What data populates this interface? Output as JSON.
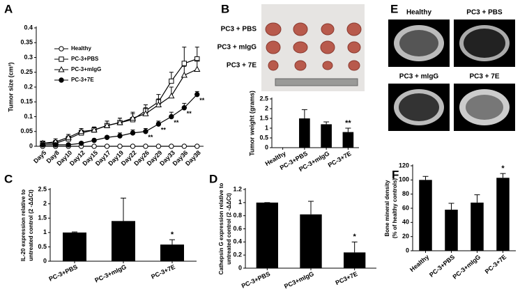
{
  "panel_letters": [
    "A",
    "B",
    "C",
    "D",
    "E",
    "F"
  ],
  "photo_labels": [
    "PC3 + PBS",
    "PC3 + mIgG",
    "PC3 + 7E"
  ],
  "ct_labels": [
    "Healthy",
    "PC3 + PBS",
    "PC3 + mIgG",
    "PC3 + 7E"
  ],
  "chart_data": [
    {
      "type": "line",
      "panel": "A",
      "ylabel": [
        "Tumor size (cm³)"
      ],
      "categories": [
        "Day5",
        "Day8",
        "Day10",
        "Day12",
        "Day15",
        "Day17",
        "Day19",
        "Day22",
        "Day26",
        "Day29",
        "Day33",
        "Day36",
        "Day38"
      ],
      "ylim": [
        0,
        0.4
      ],
      "yticks": [
        0,
        0.05,
        0.1,
        0.15,
        0.2,
        0.25,
        0.3,
        0.35,
        0.4
      ],
      "series": [
        {
          "name": "Healthy",
          "color": "#000000",
          "marker": "circle-open",
          "values": [
            0,
            0,
            0,
            0,
            0,
            0,
            0,
            0,
            0,
            0,
            0,
            0,
            0
          ]
        },
        {
          "name": "PC-3+PBS",
          "color": "#000000",
          "marker": "square-open",
          "values": [
            0.01,
            0.01,
            0.025,
            0.045,
            0.055,
            0.07,
            0.08,
            0.09,
            0.12,
            0.15,
            0.22,
            0.28,
            0.295
          ],
          "errors": [
            0.005,
            0.01,
            0.01,
            0.01,
            0.01,
            0.015,
            0.015,
            0.02,
            0.02,
            0.025,
            0.03,
            0.055,
            0.04
          ]
        },
        {
          "name": "PC-3+mIgG",
          "color": "#000000",
          "marker": "triangle-open",
          "values": [
            0.01,
            0.015,
            0.03,
            0.05,
            0.055,
            0.07,
            0.08,
            0.095,
            0.11,
            0.14,
            0.17,
            0.24,
            0.26
          ],
          "errors": [
            0.005,
            0.01,
            0.01,
            0.01,
            0.01,
            0.015,
            0.015,
            0.02,
            0.02,
            0.02,
            0.03,
            0.03,
            0.03
          ]
        },
        {
          "name": "PC-3+7E",
          "color": "#000000",
          "marker": "circle",
          "values": [
            0.005,
            0.005,
            0.005,
            0.01,
            0.02,
            0.03,
            0.035,
            0.045,
            0.05,
            0.075,
            0.1,
            0.13,
            0.175
          ],
          "errors": [
            0.005,
            0.005,
            0.005,
            0.005,
            0.005,
            0.005,
            0.01,
            0.01,
            0.01,
            0.01,
            0.015,
            0.015,
            0.01
          ],
          "significance": [
            null,
            null,
            null,
            null,
            null,
            null,
            null,
            null,
            "**",
            "**",
            "**",
            "**",
            "**"
          ]
        }
      ]
    },
    {
      "type": "bar",
      "panel": "B",
      "ylabel": [
        "Tumor weight (grams)"
      ],
      "categories": [
        "Healthy",
        "PC-3+PBS",
        "PC-3+mIgG",
        "PC-3+7E"
      ],
      "values": [
        0,
        1.5,
        1.2,
        0.8
      ],
      "errors": [
        0,
        0.45,
        0.12,
        0.2
      ],
      "significance": [
        null,
        null,
        null,
        "**"
      ],
      "color": "#000000",
      "ylim": [
        0,
        2.5
      ],
      "yticks": [
        0,
        0.5,
        1,
        1.5,
        2,
        2.5
      ]
    },
    {
      "type": "bar",
      "panel": "C",
      "ylabel": [
        "IL-20 expression relative to",
        "untreated control (2 -ΔΔCt)"
      ],
      "categories": [
        "PC-3+PBS",
        "PC-3+mIgG",
        "PC-3+7E"
      ],
      "values": [
        1,
        1.4,
        0.58
      ],
      "errors": [
        0.02,
        0.8,
        0.17
      ],
      "significance": [
        null,
        null,
        "*"
      ],
      "color": "#000000",
      "ylim": [
        0,
        2.5
      ],
      "yticks": [
        0,
        0.5,
        1,
        1.5,
        2,
        2.5
      ]
    },
    {
      "type": "bar",
      "panel": "D",
      "ylabel": [
        "Cathepsin G expression relative to",
        "untreated control (2 -ΔΔCt)"
      ],
      "categories": [
        "PC-3+PBS",
        "PC3+mIgG",
        "PC3+7E"
      ],
      "values": [
        1,
        0.82,
        0.24
      ],
      "errors": [
        0,
        0.2,
        0.16
      ],
      "significance": [
        null,
        null,
        "*"
      ],
      "color": "#000000",
      "ylim": [
        0,
        1.2
      ],
      "yticks": [
        0,
        0.2,
        0.4,
        0.6,
        0.8,
        1,
        1.2
      ]
    },
    {
      "type": "bar",
      "panel": "F",
      "ylabel": [
        "Bone mineral density",
        "(% of healthy controls)"
      ],
      "categories": [
        "Healthy",
        "PC-3+PBS",
        "PC-3+mIgG",
        "PC-3+7E"
      ],
      "values": [
        100,
        58,
        68,
        103
      ],
      "errors": [
        5,
        9,
        11,
        6
      ],
      "significance": [
        null,
        null,
        null,
        "*"
      ],
      "color": "#000000",
      "ylim": [
        0,
        120
      ],
      "yticks": [
        0,
        20,
        40,
        60,
        80,
        100,
        120
      ]
    }
  ]
}
